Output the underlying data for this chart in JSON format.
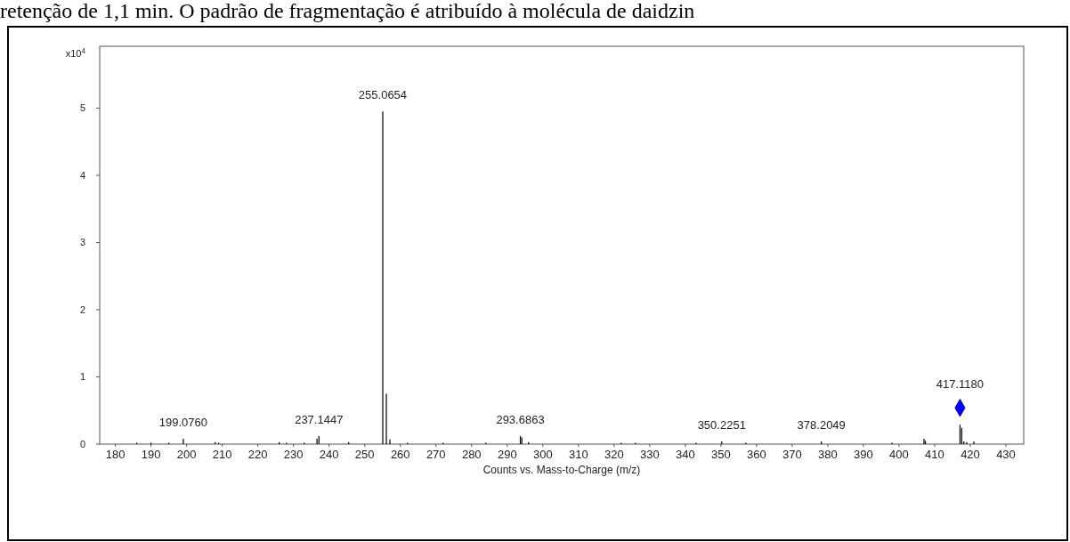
{
  "chart_data": {
    "type": "bar",
    "title": "retenção de 1,1 min. O padrão de fragmentação é atribuído à molécula de daidzin",
    "xlabel": "Counts vs. Mass-to-Charge (m/z)",
    "ylabel": "x10$^{4}$",
    "xlim": [
      175.6,
      435
    ],
    "xticks": [
      180,
      190,
      200,
      210,
      220,
      230,
      240,
      250,
      260,
      270,
      280,
      290,
      300,
      310,
      320,
      330,
      340,
      350,
      360,
      370,
      380,
      390,
      400,
      410,
      420,
      430
    ],
    "ylim": [
      0,
      5.92
    ],
    "yticks": [
      0,
      1,
      2,
      3,
      4,
      5
    ],
    "annotations": [
      {
        "text": "199.0760",
        "x": 199.076,
        "y": 0.08
      },
      {
        "text": "237.1447",
        "x": 237.1447,
        "y": 0.12
      },
      {
        "text": "255.0654",
        "x": 255.0654,
        "y": 4.95
      },
      {
        "text": "293.6863",
        "x": 293.6863,
        "y": 0.12
      },
      {
        "text": "350.2251",
        "x": 350.2251,
        "y": 0.04
      },
      {
        "text": "378.2049",
        "x": 378.2049,
        "y": 0.04
      },
      {
        "text": "417.1180",
        "x": 417.118,
        "y": 0.29
      }
    ],
    "series": [
      {
        "color": "#000000",
        "x": [
          186,
          190,
          195,
          199.076,
          208,
          209,
          226,
          228,
          233,
          236.6,
          237.1447,
          245.5,
          255.0654,
          256.07,
          257.07,
          262,
          272,
          284,
          293.6863,
          294.1,
          296,
          322,
          326,
          343,
          350.2251,
          357,
          378.2049,
          398,
          407,
          407.4,
          417.118,
          417.6,
          418.2,
          419,
          421
        ],
        "values": [
          0.02,
          0.02,
          0.02,
          0.08,
          0.03,
          0.02,
          0.03,
          0.02,
          0.02,
          0.08,
          0.12,
          0.03,
          4.95,
          0.75,
          0.07,
          0.02,
          0.02,
          0.02,
          0.12,
          0.1,
          0.03,
          0.02,
          0.02,
          0.02,
          0.04,
          0.02,
          0.04,
          0.02,
          0.08,
          0.05,
          0.29,
          0.24,
          0.04,
          0.03,
          0.04
        ]
      },
      {
        "type": "scatter",
        "color": "#0000ff",
        "marker": "diamond",
        "x": [
          417.118
        ],
        "values": [
          0.54
        ]
      }
    ]
  }
}
